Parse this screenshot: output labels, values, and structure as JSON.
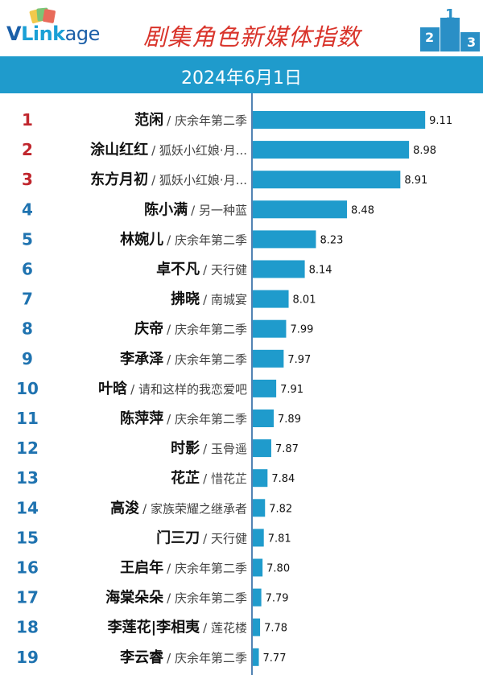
{
  "header": {
    "logo_text_v": "V",
    "logo_text_link": "Link",
    "logo_text_age": "age",
    "title": "剧集角色新媒体指数",
    "podium_digits": [
      "2",
      "1",
      "3"
    ]
  },
  "date": "2024年6月1日",
  "colors": {
    "bar": "#1f9bcc",
    "date_bar": "#1f9bcc",
    "title": "#d9342b",
    "rank_top3": "#c0262d",
    "rank_other": "#1f73b0",
    "axis_line": "#1a5a9a"
  },
  "chart_data": {
    "type": "bar",
    "orientation": "horizontal",
    "xlim": [
      0,
      9.11
    ],
    "ranks": [
      "1",
      "2",
      "3",
      "4",
      "5",
      "6",
      "7",
      "8",
      "9",
      "10",
      "11",
      "12",
      "13",
      "14",
      "15",
      "16",
      "17",
      "18",
      "19"
    ],
    "categories": [
      "范闲",
      "涂山红红",
      "东方月初",
      "陈小满",
      "林婉儿",
      "卓不凡",
      "拂晓",
      "庆帝",
      "李承泽",
      "叶晗",
      "陈萍萍",
      "时影",
      "花芷",
      "高浚",
      "门三刀",
      "王启年",
      "海棠朵朵",
      "李莲花|李相夷",
      "李云睿"
    ],
    "dramas": [
      "庆余年第二季",
      "狐妖小红娘·月...",
      "狐妖小红娘·月...",
      "另一种蓝",
      "庆余年第二季",
      "天行健",
      "南城宴",
      "庆余年第二季",
      "庆余年第二季",
      "请和这样的我恋爱吧",
      "庆余年第二季",
      "玉骨遥",
      "惜花芷",
      "家族荣耀之继承者",
      "天行健",
      "庆余年第二季",
      "庆余年第二季",
      "莲花楼",
      "庆余年第二季"
    ],
    "values": [
      9.11,
      8.98,
      8.91,
      8.48,
      8.23,
      8.14,
      8.01,
      7.99,
      7.97,
      7.91,
      7.89,
      7.87,
      7.84,
      7.82,
      7.81,
      7.8,
      7.79,
      7.78,
      7.77
    ],
    "value_labels": [
      "9.11",
      "8.98",
      "8.91",
      "8.48",
      "8.23",
      "8.14",
      "8.01",
      "7.99",
      "7.97",
      "7.91",
      "7.89",
      "7.87",
      "7.84",
      "7.82",
      "7.81",
      "7.80",
      "7.79",
      "7.78",
      "7.77"
    ],
    "title": "剧集角色新媒体指数"
  }
}
